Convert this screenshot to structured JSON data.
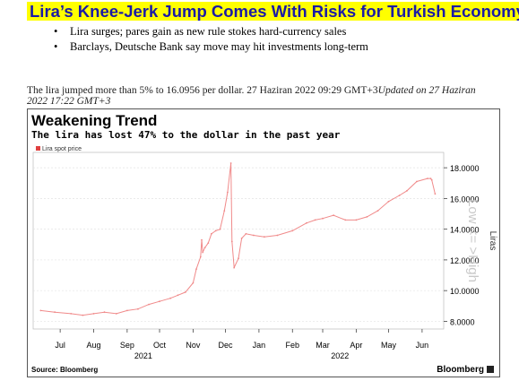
{
  "headline": "Lira’s Knee-Jerk Jump Comes With Risks for Turkish Economy",
  "bullets": [
    "Lira surges; pares gain as new rule stokes hard-currency sales",
    "Barclays, Deutsche Bank say move may hit investments long-term"
  ],
  "byline": {
    "text": "The lira jumped more than 5% to 16.0956 per dollar. 27 Haziran 2022 09:29 GMT+3",
    "updated": "Updated on 27 Haziran 2022 17:22 GMT+3"
  },
  "chart": {
    "title": "Weakening Trend",
    "subtitle": "The lira has lost 47% to the dollar in the past year",
    "source": "Source: Bloomberg",
    "brand": "Bloomberg",
    "overlay_text": "Low <= >High"
  },
  "colors": {
    "line": "#f08a8a",
    "highlight": "#8fe07a",
    "highlight_border": "#2f9a2f",
    "headline_bg": "#ffff00",
    "headline_text": "#1a1aa6"
  },
  "chart_data": {
    "type": "line",
    "legend": "Lira spot price",
    "legend_position": "top-left",
    "ylabel": "Liras",
    "y_inverted": true,
    "ylim": [
      19,
      7.5
    ],
    "y_ticks": [
      "8.0000",
      "10.0000",
      "12.0000",
      "14.0000",
      "16.0000",
      "18.0000"
    ],
    "x_ticks": [
      "Jul",
      "Aug",
      "Sep",
      "Oct",
      "Nov",
      "Dec",
      "Jan",
      "Feb",
      "Mar",
      "Apr",
      "May",
      "Jun"
    ],
    "x_years": [
      "2021",
      "2022"
    ],
    "grid": true,
    "series": [
      {
        "name": "Lira spot price",
        "x": [
          "2021-06-27",
          "2021-07-10",
          "2021-07-25",
          "2021-08-05",
          "2021-08-15",
          "2021-08-25",
          "2021-09-05",
          "2021-09-15",
          "2021-09-25",
          "2021-10-05",
          "2021-10-15",
          "2021-10-25",
          "2021-11-01",
          "2021-11-08",
          "2021-11-15",
          "2021-11-18",
          "2021-11-22",
          "2021-11-23",
          "2021-11-24",
          "2021-11-26",
          "2021-11-29",
          "2021-12-02",
          "2021-12-06",
          "2021-12-10",
          "2021-12-14",
          "2021-12-17",
          "2021-12-20",
          "2021-12-21",
          "2021-12-23",
          "2021-12-27",
          "2021-12-30",
          "2022-01-03",
          "2022-01-10",
          "2022-01-20",
          "2022-02-01",
          "2022-02-15",
          "2022-02-28",
          "2022-03-08",
          "2022-03-15",
          "2022-03-25",
          "2022-04-05",
          "2022-04-15",
          "2022-04-25",
          "2022-05-05",
          "2022-05-15",
          "2022-05-25",
          "2022-06-01",
          "2022-06-10",
          "2022-06-20",
          "2022-06-23",
          "2022-06-24",
          "2022-06-27"
        ],
        "values": [
          8.7,
          8.6,
          8.5,
          8.4,
          8.5,
          8.6,
          8.5,
          8.7,
          8.8,
          9.1,
          9.3,
          9.5,
          9.7,
          9.9,
          10.5,
          11.4,
          12.2,
          13.3,
          12.5,
          12.8,
          13.1,
          13.7,
          13.9,
          14.0,
          15.2,
          16.4,
          18.3,
          13.2,
          11.5,
          12.1,
          13.4,
          13.7,
          13.6,
          13.5,
          13.6,
          13.9,
          14.4,
          14.6,
          14.7,
          14.9,
          14.6,
          14.6,
          14.8,
          15.2,
          15.8,
          16.2,
          16.5,
          17.1,
          17.3,
          17.3,
          17.2,
          16.3
        ]
      }
    ]
  }
}
